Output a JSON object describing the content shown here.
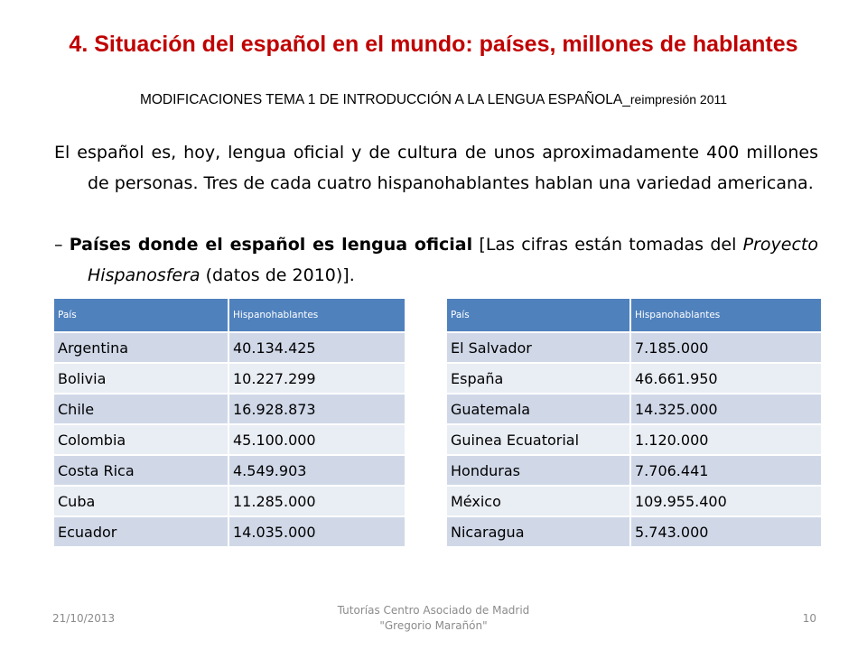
{
  "slide": {
    "title": "4. Situación del español en el mundo: países, millones de hablantes",
    "subtitle_main": "MODIFICACIONES TEMA 1 DE INTRODUCCIÓN A LA LENGUA ESPAÑOLA_",
    "subtitle_small": "reimpresión 2011",
    "paragraph1": "El español es, hoy, lengua oficial y de cultura de unos aproximadamente 400 millones de personas. Tres de cada cuatro hispanohablantes hablan una variedad americana.",
    "p2_dash": "–",
    "p2_bold": "Países donde el español es lengua oficial",
    "p2_text1": " [Las cifras están tomadas del ",
    "p2_italic": "Proyecto Hispanosfera",
    "p2_text2": " (datos de 2010)]."
  },
  "table_left": {
    "header_country": "País",
    "header_speakers": "Hispanohablantes",
    "rows": [
      {
        "country": "Argentina",
        "speakers": "40.134.425"
      },
      {
        "country": "Bolivia",
        "speakers": "10.227.299"
      },
      {
        "country": "Chile",
        "speakers": "16.928.873"
      },
      {
        "country": "Colombia",
        "speakers": "45.100.000"
      },
      {
        "country": "Costa Rica",
        "speakers": "4.549.903"
      },
      {
        "country": "Cuba",
        "speakers": "11.285.000"
      },
      {
        "country": "Ecuador",
        "speakers": "14.035.000"
      }
    ]
  },
  "table_right": {
    "header_country": "País",
    "header_speakers": "Hispanohablantes",
    "rows": [
      {
        "country": "El Salvador",
        "speakers": "7.185.000"
      },
      {
        "country": "España",
        "speakers": "46.661.950"
      },
      {
        "country": "Guatemala",
        "speakers": "14.325.000"
      },
      {
        "country": "Guinea Ecuatorial",
        "speakers": "1.120.000"
      },
      {
        "country": "Honduras",
        "speakers": "7.706.441"
      },
      {
        "country": "México",
        "speakers": "109.955.400"
      },
      {
        "country": "Nicaragua",
        "speakers": "5.743.000"
      }
    ]
  },
  "footer": {
    "date": "21/10/2013",
    "center_line1": "Tutorías Centro Asociado de Madrid",
    "center_line2": "\"Gregorio Marañón\"",
    "page": "10"
  },
  "colors": {
    "title": "#c00000",
    "table_header": "#4f81bd",
    "row_dark": "#d0d8e8",
    "row_light": "#e9edf4"
  }
}
